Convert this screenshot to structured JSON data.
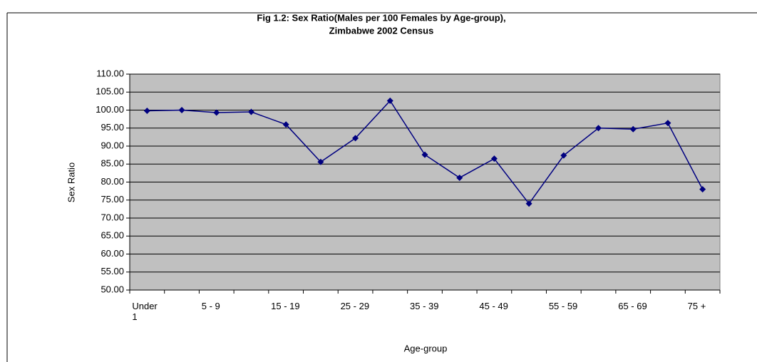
{
  "chart_data": {
    "type": "line",
    "title": "Fig 1.2: Sex Ratio(Males per 100 Females by Age-group),",
    "subtitle": "Zimbabwe 2002 Census",
    "x_label": "Age-group",
    "y_label": "Sex Ratio",
    "categories": [
      "Under 1",
      null,
      "5 - 9",
      null,
      "15 - 19",
      null,
      "25 - 29",
      null,
      "35 - 39",
      null,
      "45 - 49",
      null,
      "55 - 59",
      null,
      "65 - 69",
      null,
      "75 +"
    ],
    "series": [
      {
        "name": "Sex Ratio",
        "color": "#000080",
        "values": [
          99.8,
          100.0,
          99.3,
          99.5,
          96.0,
          85.6,
          92.2,
          102.6,
          87.6,
          81.2,
          86.5,
          74.0,
          87.4,
          95.0,
          94.7,
          96.4,
          78.0
        ]
      }
    ],
    "ylim": [
      50,
      110
    ],
    "yticks": [
      {
        "value": 50,
        "label": "50.00"
      },
      {
        "value": 55,
        "label": "55.00"
      },
      {
        "value": 60,
        "label": "60.00"
      },
      {
        "value": 65,
        "label": "65.00"
      },
      {
        "value": 70,
        "label": "70.00"
      },
      {
        "value": 75,
        "label": "75.00"
      },
      {
        "value": 80,
        "label": "80.00"
      },
      {
        "value": 85,
        "label": "85.00"
      },
      {
        "value": 90,
        "label": "90.00"
      },
      {
        "value": 95,
        "label": "95.00"
      },
      {
        "value": 100,
        "label": "100.00"
      },
      {
        "value": 105,
        "label": "105.00"
      },
      {
        "value": 110,
        "label": "110.00"
      }
    ],
    "grid": true,
    "plot_background": "#c0c0c0"
  }
}
